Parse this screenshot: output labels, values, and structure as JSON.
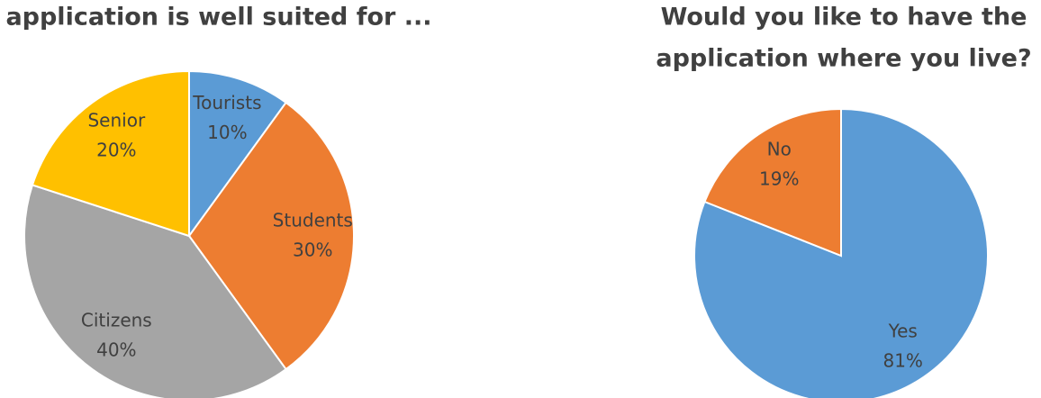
{
  "chart_data": [
    {
      "type": "pie",
      "title": [
        "application is well suited for ..."
      ],
      "categories": [
        "Tourists",
        "Students",
        "Citizens",
        "Senior"
      ],
      "values": [
        10,
        30,
        40,
        20
      ],
      "value_labels": [
        "10%",
        "30%",
        "40%",
        "20%"
      ],
      "colors": [
        "#5b9bd5",
        "#ed7d31",
        "#a5a5a5",
        "#ffc000"
      ]
    },
    {
      "type": "pie",
      "title": [
        "Would you like to have the",
        "application where you live?"
      ],
      "categories": [
        "Yes",
        "No"
      ],
      "values": [
        81,
        19
      ],
      "value_labels": [
        "81%",
        "19%"
      ],
      "colors": [
        "#5b9bd5",
        "#ed7d31"
      ]
    }
  ]
}
